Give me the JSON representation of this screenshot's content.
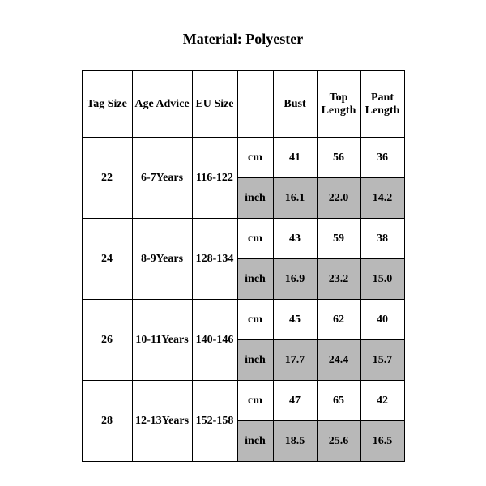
{
  "title": "Material: Polyester",
  "headers": {
    "tag_size": "Tag Size",
    "age_advice": "Age Advice",
    "eu_size": "EU Size",
    "bust": "Bust",
    "top_length": "Top Length",
    "pant_length": "Pant Length"
  },
  "units": {
    "cm": "cm",
    "inch": "inch"
  },
  "rows": [
    {
      "tag": "22",
      "age": "6-7Years",
      "eu": "116-122",
      "cm": {
        "bust": "41",
        "top": "56",
        "pant": "36"
      },
      "inch": {
        "bust": "16.1",
        "top": "22.0",
        "pant": "14.2"
      }
    },
    {
      "tag": "24",
      "age": "8-9Years",
      "eu": "128-134",
      "cm": {
        "bust": "43",
        "top": "59",
        "pant": "38"
      },
      "inch": {
        "bust": "16.9",
        "top": "23.2",
        "pant": "15.0"
      }
    },
    {
      "tag": "26",
      "age": "10-11Years",
      "eu": "140-146",
      "cm": {
        "bust": "45",
        "top": "62",
        "pant": "40"
      },
      "inch": {
        "bust": "17.7",
        "top": "24.4",
        "pant": "15.7"
      }
    },
    {
      "tag": "28",
      "age": "12-13Years",
      "eu": "152-158",
      "cm": {
        "bust": "47",
        "top": "65",
        "pant": "42"
      },
      "inch": {
        "bust": "18.5",
        "top": "25.6",
        "pant": "16.5"
      }
    }
  ],
  "style": {
    "shade_color": "#b8b8b8",
    "border_color": "#000000",
    "background": "#ffffff",
    "font_family": "Times New Roman",
    "title_fontsize": 18,
    "cell_fontsize": 14
  }
}
